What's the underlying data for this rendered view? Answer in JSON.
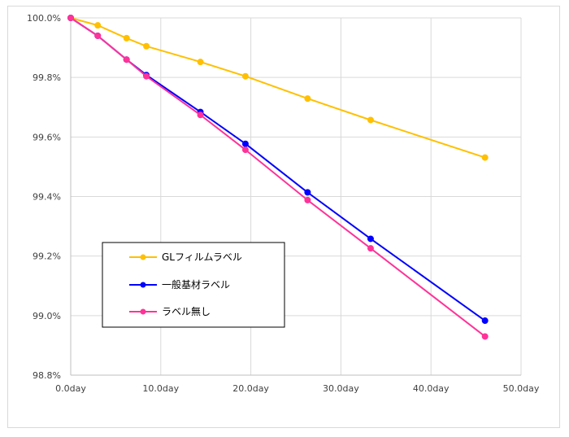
{
  "chart_data": {
    "type": "line",
    "title": "",
    "xlabel": "",
    "ylabel": "",
    "xlim": [
      0,
      50
    ],
    "ylim": [
      98.8,
      100.0
    ],
    "x_ticks": [
      0,
      10,
      20,
      30,
      40,
      50
    ],
    "x_tick_labels": [
      "0.0day",
      "10.0day",
      "20.0day",
      "30.0day",
      "40.0day",
      "50.0day"
    ],
    "y_ticks": [
      98.8,
      99.0,
      99.2,
      99.4,
      99.6,
      99.8,
      100.0
    ],
    "y_tick_labels": [
      "98.8%",
      "99.0%",
      "99.2%",
      "99.4%",
      "99.6%",
      "99.8%",
      "100.0%"
    ],
    "grid": true,
    "legend_position": "lower-left",
    "series": [
      {
        "name": "GLフィルムラベル",
        "color": "#FFC000",
        "x": [
          0,
          3,
          6.2,
          8.4,
          14.4,
          19.4,
          26.3,
          33.3,
          46
        ],
        "y": [
          100.0,
          99.975,
          99.932,
          99.905,
          99.852,
          99.804,
          99.729,
          99.657,
          99.531
        ]
      },
      {
        "name": "一般基材ラベル",
        "color": "#0000FF",
        "x": [
          0,
          3,
          6.2,
          8.4,
          14.4,
          19.4,
          26.3,
          33.3,
          46
        ],
        "y": [
          100.0,
          99.94,
          99.86,
          99.808,
          99.684,
          99.577,
          99.414,
          99.258,
          98.983
        ]
      },
      {
        "name": "ラベル無し",
        "color": "#FF3399",
        "x": [
          0,
          3,
          6.2,
          8.4,
          14.4,
          19.4,
          26.3,
          33.3,
          46
        ],
        "y": [
          100.0,
          99.94,
          99.86,
          99.804,
          99.674,
          99.557,
          99.388,
          99.226,
          98.93
        ]
      }
    ]
  }
}
